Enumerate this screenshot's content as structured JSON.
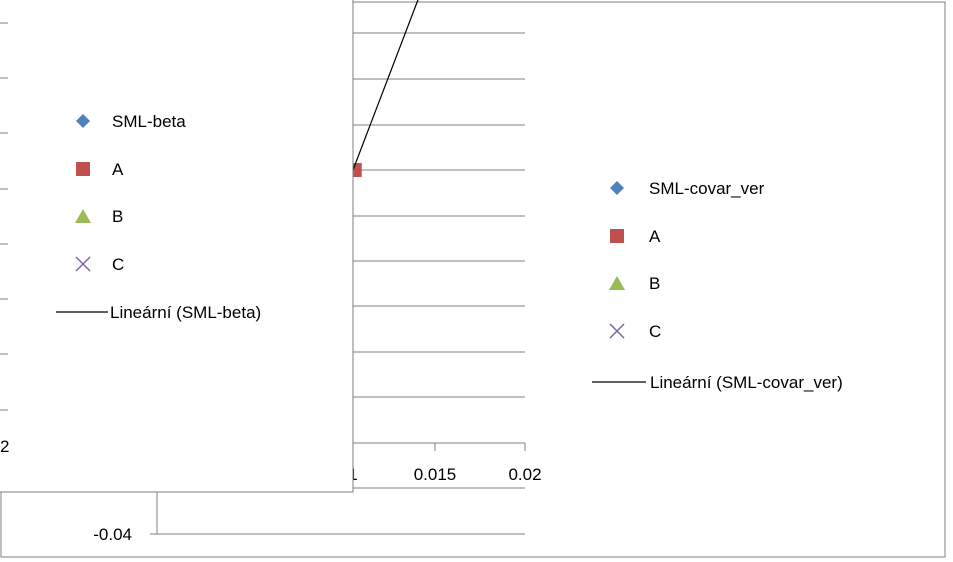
{
  "chart_data": [
    {
      "type": "scatter",
      "title": "",
      "xlabel": "",
      "ylabel": "",
      "xlim": [
        -0.02,
        0.02
      ],
      "ylim": [
        -0.04,
        0.04
      ],
      "x_tick_labels": [
        "1",
        "0.015",
        "0.02"
      ],
      "y_tick_labels": [
        "-0.04"
      ],
      "grid": "horizontal",
      "series": [
        {
          "name": "SML-covar_ver",
          "marker": "diamond",
          "color": "#4F81BD",
          "points": []
        },
        {
          "name": "A",
          "marker": "square",
          "color": "#C0504D",
          "points": [
            {
              "x": 0.0101,
              "y": 0.0
            }
          ]
        },
        {
          "name": "B",
          "marker": "triangle",
          "color": "#9BBB59",
          "points": []
        },
        {
          "name": "C",
          "marker": "x",
          "color": "#8064A2",
          "points": []
        },
        {
          "name": "Lineární (SML-covar_ver)",
          "marker": "line",
          "color": "#000000",
          "line": [
            {
              "x": 0.01,
              "y": 0.0
            },
            {
              "x": 0.015,
              "y": 0.0165
            }
          ]
        }
      ],
      "legend": "right"
    },
    {
      "type": "scatter",
      "title": "",
      "xlabel": "",
      "ylabel": "",
      "x_tick_labels": [
        "2"
      ],
      "grid": "none",
      "series": [
        {
          "name": "SML-beta",
          "marker": "diamond",
          "color": "#4F81BD"
        },
        {
          "name": "A",
          "marker": "square",
          "color": "#C0504D"
        },
        {
          "name": "B",
          "marker": "triangle",
          "color": "#9BBB59"
        },
        {
          "name": "C",
          "marker": "x",
          "color": "#8064A2"
        },
        {
          "name": "Lineární (SML-beta)",
          "marker": "line",
          "color": "#000000"
        }
      ],
      "legend": "right"
    }
  ]
}
